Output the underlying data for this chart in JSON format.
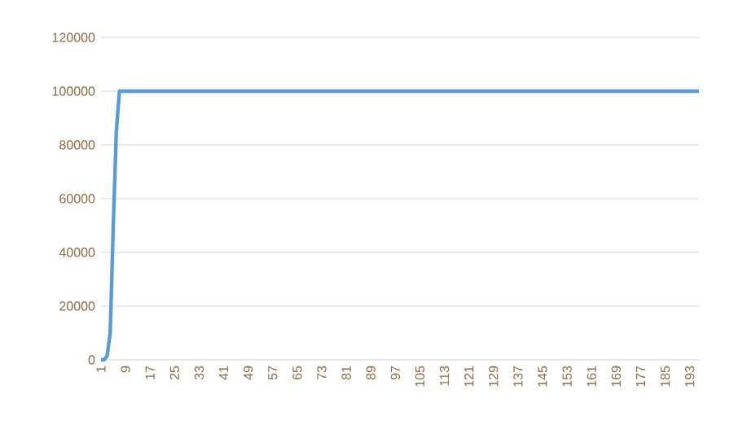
{
  "chart_data": {
    "type": "line",
    "x": [
      1,
      2,
      3,
      4,
      5,
      6,
      7,
      8,
      196
    ],
    "series": [
      {
        "color": "#5b9bd5",
        "values": [
          0,
          0,
          1500,
          10000,
          50000,
          85000,
          100000,
          100000,
          100000
        ]
      }
    ],
    "xlim": [
      1,
      196
    ],
    "xticks": [
      1,
      9,
      17,
      25,
      33,
      41,
      49,
      57,
      65,
      73,
      81,
      89,
      97,
      105,
      113,
      121,
      129,
      137,
      145,
      153,
      161,
      169,
      177,
      185,
      193
    ],
    "ylim": [
      0,
      120000
    ],
    "yticks": [
      0,
      20000,
      40000,
      60000,
      80000,
      100000,
      120000
    ],
    "grid": "y",
    "marker": "none",
    "line_style": "solid"
  }
}
